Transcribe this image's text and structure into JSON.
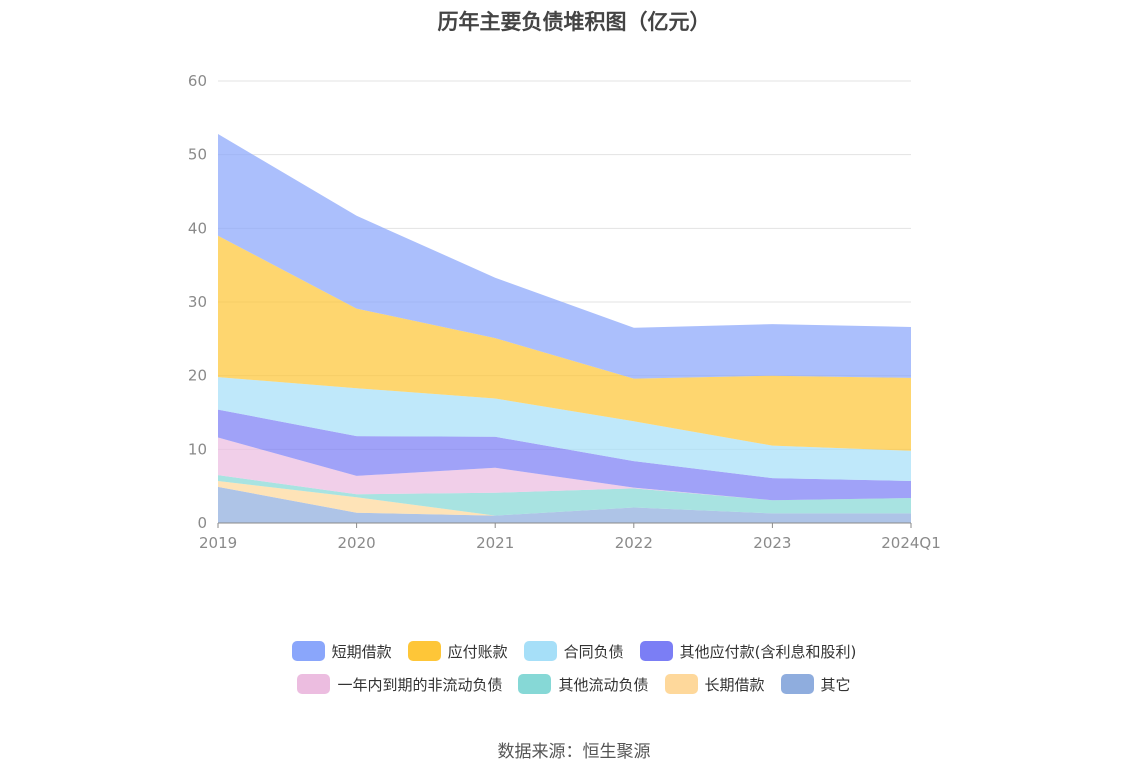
{
  "chart_data": {
    "type": "area",
    "stacked": true,
    "title": "历年主要负债堆积图（亿元）",
    "categories": [
      "2019",
      "2020",
      "2021",
      "2022",
      "2023",
      "2024Q1"
    ],
    "ylim": [
      0,
      60
    ],
    "yticks": [
      0,
      10,
      20,
      30,
      40,
      50,
      60
    ],
    "grid": true,
    "legend_position": "bottom",
    "series": [
      {
        "name": "其它",
        "color": "#8fadde",
        "values": [
          4.9,
          1.4,
          1.0,
          2.1,
          1.3,
          1.3
        ]
      },
      {
        "name": "长期借款",
        "color": "#fed89b",
        "values": [
          0.8,
          2.1,
          0.0,
          0.0,
          0.0,
          0.0
        ]
      },
      {
        "name": "其他流动负债",
        "color": "#86d8d6",
        "values": [
          0.8,
          0.4,
          3.1,
          2.6,
          1.8,
          2.1
        ]
      },
      {
        "name": "一年内到期的非流动负债",
        "color": "#ecbde0",
        "values": [
          5.1,
          2.5,
          3.4,
          0.1,
          0.0,
          0.0
        ]
      },
      {
        "name": "其他应付款(含利息和股利)",
        "color": "#7b7ef5",
        "values": [
          3.8,
          5.4,
          4.2,
          3.6,
          3.0,
          2.3
        ]
      },
      {
        "name": "合同负债",
        "color": "#a6dff8",
        "values": [
          4.4,
          6.5,
          5.2,
          5.4,
          4.4,
          4.1
        ]
      },
      {
        "name": "应付账款",
        "color": "#fec638",
        "values": [
          19.2,
          10.8,
          8.2,
          5.8,
          9.5,
          9.9
        ]
      },
      {
        "name": "短期借款",
        "color": "#8aa6fb",
        "values": [
          13.8,
          12.6,
          8.2,
          6.9,
          7.0,
          6.9
        ]
      }
    ],
    "legend_rows": [
      [
        "短期借款",
        "应付账款",
        "合同负债",
        "其他应付款(含利息和股利)"
      ],
      [
        "一年内到期的非流动负债",
        "其他流动负债",
        "长期借款",
        "其它"
      ]
    ],
    "source": "数据来源：恒生聚源"
  }
}
